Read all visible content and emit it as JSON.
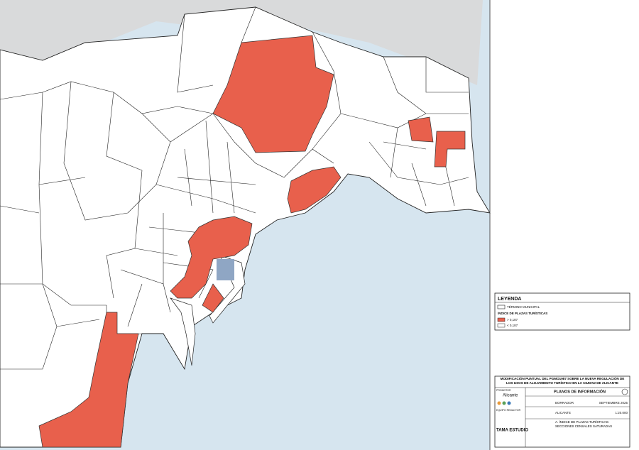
{
  "legend": {
    "title": "LEYENDA",
    "boundary": "TÉRMINO MUNICIPAL",
    "index_title": "ÍNDICE DE PLAZAS TURÍSTICAS",
    "high": "> 0,187",
    "low": "< 0,187"
  },
  "title_block": {
    "title": "MODIFICACIÓN PUNTUAL DEL PGMO1987 SOBRE LA NUEVA REGULACIÓN DE LOS USOS DE ALOJAMIENTO TURÍSTICO EN LA CIUDAD DE ALICANTE",
    "promotor": "PROMOTOR",
    "city_logo": "Alicante",
    "team": "EQUIPO REDACTOR",
    "studio": "TAMA ESTUDIO",
    "sheet_title": "PLANOS DE INFORMACIÓN",
    "phase": "BORRADOR",
    "date": "SEPTIEMBRE 2025",
    "location": "ALICANTE",
    "scale": "1:20.000",
    "plan": "A. ÍNDICE DE PLAZAS TURÍSTICAS: SECCIONES CENSALES SATURADAS"
  }
}
